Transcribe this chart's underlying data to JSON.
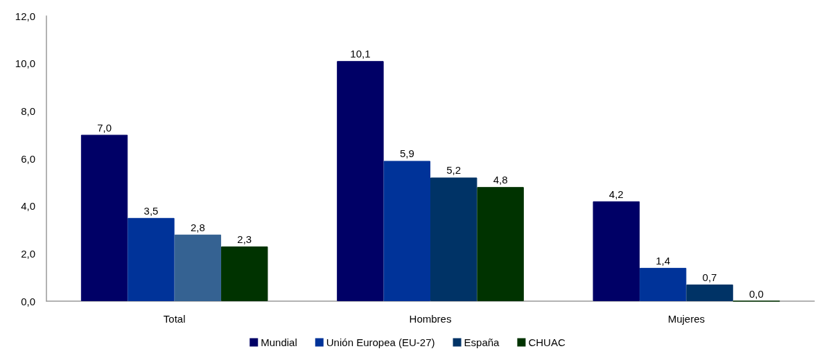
{
  "chart_data": {
    "type": "bar",
    "categories": [
      "Total",
      "Hombres",
      "Mujeres"
    ],
    "series": [
      {
        "name": "Mundial",
        "color": "#000066",
        "values": [
          7.0,
          10.1,
          4.2
        ],
        "value_labels": [
          "7,0",
          "10,1",
          "4,2"
        ]
      },
      {
        "name": "Unión Europea (EU-27)",
        "color": "#003399",
        "values": [
          3.5,
          5.9,
          1.4
        ],
        "value_labels": [
          "3,5",
          "5,9",
          "1,4"
        ]
      },
      {
        "name": "España",
        "color": "#003366",
        "colors": [
          "#356292",
          "#003366",
          "#003366"
        ],
        "values": [
          2.8,
          5.2,
          0.7
        ],
        "value_labels": [
          "2,8",
          "5,2",
          "0,7"
        ]
      },
      {
        "name": "CHUAC",
        "color": "#003300",
        "values": [
          2.3,
          4.8,
          0.0
        ],
        "value_labels": [
          "2,3",
          "4,8",
          "0,0"
        ]
      }
    ],
    "ylim": [
      0,
      12
    ],
    "yticks": [
      {
        "value": 0,
        "label": "0,0"
      },
      {
        "value": 2,
        "label": "2,0"
      },
      {
        "value": 4,
        "label": "4,0"
      },
      {
        "value": 6,
        "label": "6,0"
      },
      {
        "value": 8,
        "label": "8,0"
      },
      {
        "value": 10,
        "label": "10,0"
      },
      {
        "value": 12,
        "label": "12,0"
      }
    ],
    "grid": false,
    "legend": "bottom"
  }
}
